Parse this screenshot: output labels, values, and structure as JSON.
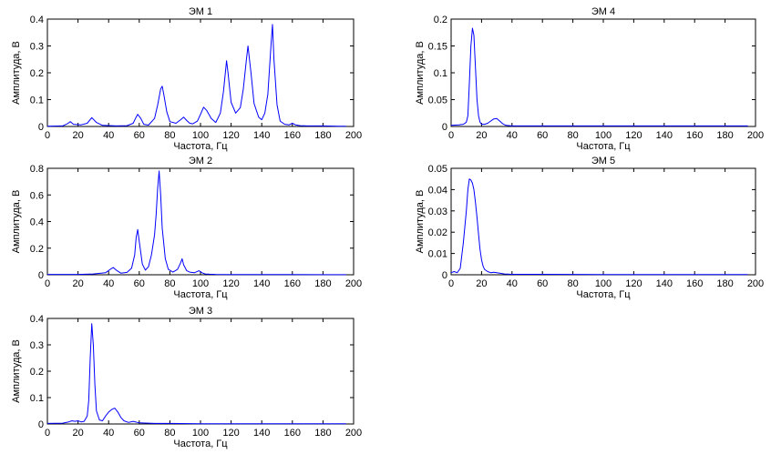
{
  "figure": {
    "background": "#ffffff",
    "line_color": "#0000ff",
    "axis_color": "#000000"
  },
  "chart_data": [
    {
      "type": "line",
      "title": "ЭМ 1",
      "xlabel": "Частота, Гц",
      "ylabel": "Амплитуда, В",
      "xlim": [
        0,
        200
      ],
      "ylim": [
        0,
        0.4
      ],
      "xticks": [
        "0",
        "20",
        "40",
        "60",
        "80",
        "100",
        "120",
        "140",
        "160",
        "180",
        "200"
      ],
      "yticks": [
        "0",
        "0.1",
        "0.2",
        "0.3",
        "0.4"
      ],
      "grid": false,
      "series": [
        {
          "x": [
            0,
            10,
            13,
            15,
            17,
            22,
            26,
            29,
            32,
            36,
            45,
            52,
            56,
            58,
            59,
            61,
            63,
            66,
            70,
            72,
            74,
            75,
            76,
            78,
            80,
            84,
            87,
            89,
            91,
            93,
            95,
            98,
            100,
            102,
            104,
            107,
            110,
            113,
            115,
            117,
            118,
            120,
            123,
            126,
            128,
            130,
            131,
            133,
            135,
            138,
            140,
            142,
            144,
            146,
            147,
            148,
            150,
            152,
            155,
            158,
            160,
            162,
            165,
            170,
            180,
            190,
            195
          ],
          "y": [
            0.001,
            0.002,
            0.01,
            0.018,
            0.008,
            0.006,
            0.012,
            0.033,
            0.015,
            0.004,
            0.002,
            0.003,
            0.012,
            0.035,
            0.045,
            0.03,
            0.008,
            0.005,
            0.03,
            0.08,
            0.14,
            0.15,
            0.12,
            0.055,
            0.018,
            0.012,
            0.025,
            0.035,
            0.022,
            0.012,
            0.01,
            0.02,
            0.045,
            0.072,
            0.06,
            0.03,
            0.015,
            0.05,
            0.13,
            0.245,
            0.2,
            0.09,
            0.05,
            0.07,
            0.14,
            0.25,
            0.3,
            0.2,
            0.085,
            0.035,
            0.025,
            0.05,
            0.12,
            0.3,
            0.38,
            0.25,
            0.08,
            0.02,
            0.008,
            0.006,
            0.012,
            0.006,
            0.003,
            0.002,
            0.002,
            0.001,
            0.001
          ]
        }
      ]
    },
    {
      "type": "line",
      "title": "ЭМ 2",
      "xlabel": "Частота, Гц",
      "ylabel": "Амплитуда, В",
      "xlim": [
        0,
        200
      ],
      "ylim": [
        0,
        0.8
      ],
      "xticks": [
        "0",
        "20",
        "40",
        "60",
        "80",
        "100",
        "120",
        "140",
        "160",
        "180",
        "200"
      ],
      "yticks": [
        "0",
        "0.2",
        "0.4",
        "0.6",
        "0.8"
      ],
      "grid": false,
      "series": [
        {
          "x": [
            0,
            20,
            30,
            38,
            41,
            43,
            45,
            48,
            52,
            55,
            57,
            58,
            59,
            60,
            62,
            64,
            66,
            68,
            70,
            71,
            72,
            73,
            74,
            75,
            77,
            79,
            82,
            85,
            87,
            88,
            89,
            91,
            93,
            96,
            99,
            101,
            103,
            106,
            110,
            120,
            140,
            160,
            180,
            195
          ],
          "y": [
            0.003,
            0.003,
            0.006,
            0.015,
            0.04,
            0.055,
            0.035,
            0.012,
            0.018,
            0.05,
            0.15,
            0.28,
            0.34,
            0.25,
            0.08,
            0.035,
            0.06,
            0.15,
            0.3,
            0.45,
            0.65,
            0.78,
            0.6,
            0.35,
            0.12,
            0.04,
            0.02,
            0.04,
            0.09,
            0.12,
            0.075,
            0.03,
            0.02,
            0.015,
            0.03,
            0.015,
            0.006,
            0.004,
            0.003,
            0.002,
            0.002,
            0.002,
            0.001,
            0.001
          ]
        }
      ]
    },
    {
      "type": "line",
      "title": "ЭМ 3",
      "xlabel": "Частота, Гц",
      "ylabel": "Амплитуда, В",
      "xlim": [
        0,
        200
      ],
      "ylim": [
        0,
        0.4
      ],
      "xticks": [
        "0",
        "20",
        "40",
        "60",
        "80",
        "100",
        "120",
        "140",
        "160",
        "180",
        "200"
      ],
      "yticks": [
        "0",
        "0.1",
        "0.2",
        "0.3",
        "0.4"
      ],
      "grid": false,
      "series": [
        {
          "x": [
            0,
            10,
            14,
            16,
            18,
            20,
            22,
            24,
            26,
            27,
            28,
            29,
            30,
            31,
            32,
            34,
            36,
            38,
            40,
            42,
            44,
            46,
            48,
            50,
            53,
            56,
            60,
            70,
            80,
            100,
            120,
            150,
            195
          ],
          "y": [
            0.002,
            0.003,
            0.008,
            0.012,
            0.01,
            0.012,
            0.008,
            0.01,
            0.03,
            0.09,
            0.25,
            0.38,
            0.3,
            0.15,
            0.05,
            0.015,
            0.012,
            0.03,
            0.045,
            0.055,
            0.06,
            0.045,
            0.025,
            0.012,
            0.006,
            0.01,
            0.004,
            0.002,
            0.002,
            0.001,
            0.001,
            0.001,
            0.001
          ]
        }
      ]
    },
    {
      "type": "line",
      "title": "ЭМ 4",
      "xlabel": "Частота, Гц",
      "ylabel": "Амплитуда, В",
      "xlim": [
        0,
        200
      ],
      "ylim": [
        0,
        0.2
      ],
      "xticks": [
        "0",
        "20",
        "40",
        "60",
        "80",
        "100",
        "120",
        "140",
        "160",
        "180",
        "200"
      ],
      "yticks": [
        "0",
        "0.05",
        "0.1",
        "0.15",
        "0.2"
      ],
      "grid": false,
      "series": [
        {
          "x": [
            0,
            5,
            8,
            10,
            11,
            12,
            13,
            14,
            15,
            16,
            17,
            18,
            19,
            20,
            22,
            24,
            26,
            28,
            30,
            32,
            34,
            36,
            40,
            50,
            70,
            100,
            140,
            195
          ],
          "y": [
            0.002,
            0.003,
            0.004,
            0.008,
            0.02,
            0.08,
            0.15,
            0.183,
            0.17,
            0.11,
            0.05,
            0.02,
            0.008,
            0.004,
            0.004,
            0.006,
            0.01,
            0.014,
            0.015,
            0.01,
            0.005,
            0.002,
            0.001,
            0.001,
            0.001,
            0.001,
            0.001,
            0.001
          ]
        }
      ]
    },
    {
      "type": "line",
      "title": "ЭМ 5",
      "xlabel": "Частота, Гц",
      "ylabel": "Амплитуда, В",
      "xlim": [
        0,
        200
      ],
      "ylim": [
        0,
        0.05
      ],
      "xticks": [
        "0",
        "20",
        "40",
        "60",
        "80",
        "100",
        "120",
        "140",
        "160",
        "180",
        "200"
      ],
      "yticks": [
        "0",
        "0.01",
        "0.02",
        "0.03",
        "0.04",
        "0.05"
      ],
      "grid": false,
      "series": [
        {
          "x": [
            0,
            2,
            4,
            6,
            8,
            10,
            11,
            12,
            13,
            14,
            15,
            16,
            17,
            18,
            19,
            20,
            21,
            22,
            24,
            26,
            28,
            30,
            35,
            40,
            60,
            100,
            150,
            195
          ],
          "y": [
            0.001,
            0.0015,
            0.001,
            0.003,
            0.015,
            0.03,
            0.04,
            0.045,
            0.0445,
            0.043,
            0.04,
            0.034,
            0.027,
            0.019,
            0.012,
            0.007,
            0.004,
            0.0025,
            0.0015,
            0.001,
            0.0012,
            0.001,
            0.0004,
            0.0002,
            0.0002,
            0.0001,
            0.0001,
            0.0001
          ]
        }
      ]
    }
  ]
}
